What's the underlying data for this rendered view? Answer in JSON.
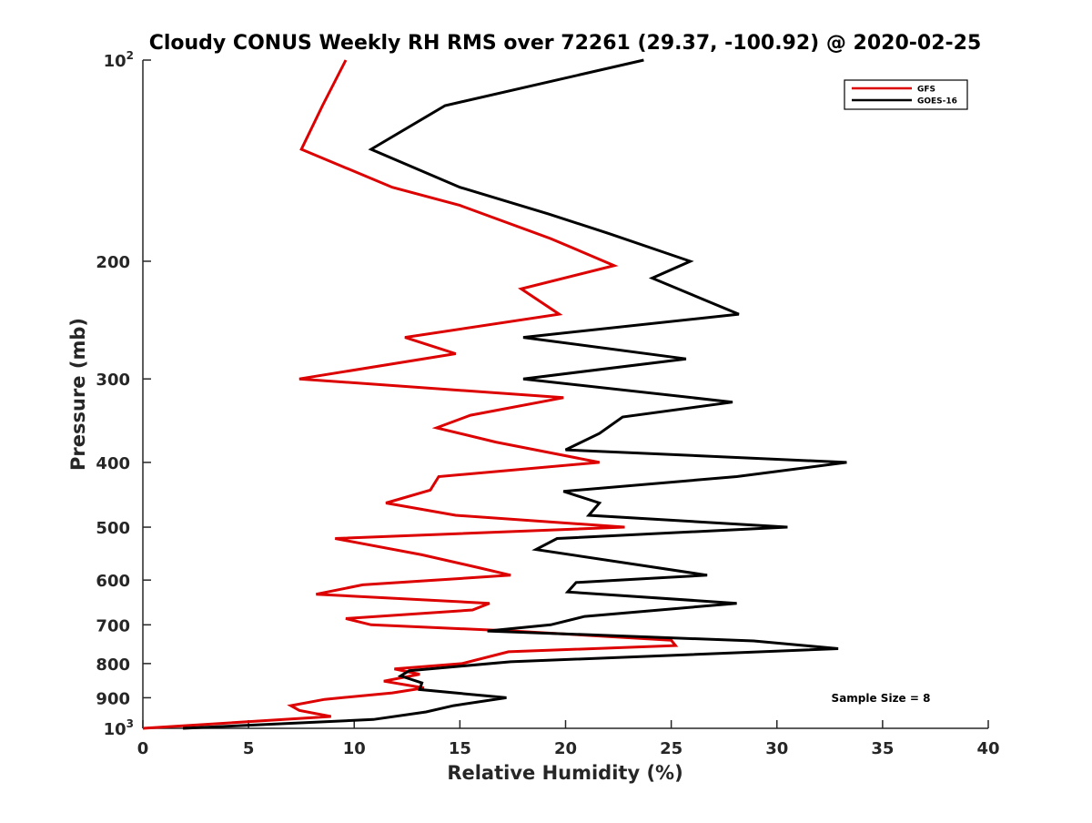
{
  "chart_data": {
    "type": "line",
    "title": "Cloudy CONUS Weekly RH RMS over 72261 (29.37, -100.92) @ 2020-02-25",
    "xlabel": "Relative Humidity (%)",
    "ylabel": "Pressure (mb)",
    "xlim": [
      0,
      40
    ],
    "ylim": [
      100,
      1000
    ],
    "y_scale": "log",
    "y_reversed": true,
    "grid": false,
    "legend_position": "top-right",
    "x_ticks": [
      "0",
      "5",
      "10",
      "15",
      "20",
      "25",
      "30",
      "35",
      "40"
    ],
    "y_ticks": [
      {
        "value": 100,
        "label": "10",
        "sup": "2"
      },
      {
        "value": 200,
        "label": "200",
        "sup": ""
      },
      {
        "value": 300,
        "label": "300",
        "sup": ""
      },
      {
        "value": 400,
        "label": "400",
        "sup": ""
      },
      {
        "value": 500,
        "label": "500",
        "sup": ""
      },
      {
        "value": 600,
        "label": "600",
        "sup": ""
      },
      {
        "value": 700,
        "label": "700",
        "sup": ""
      },
      {
        "value": 800,
        "label": "800",
        "sup": ""
      },
      {
        "value": 900,
        "label": "900",
        "sup": ""
      },
      {
        "value": 1000,
        "label": "10",
        "sup": "3"
      }
    ],
    "annotation": "Sample Size = 8",
    "series": [
      {
        "name": "GFS",
        "color": "#dd0000",
        "points": [
          [
            9.6,
            100
          ],
          [
            8.5,
            117
          ],
          [
            7.5,
            136
          ],
          [
            11.8,
            155
          ],
          [
            15.0,
            165
          ],
          [
            19.3,
            185
          ],
          [
            22.3,
            203
          ],
          [
            17.9,
            220
          ],
          [
            19.7,
            240
          ],
          [
            12.4,
            260
          ],
          [
            14.8,
            275
          ],
          [
            7.4,
            300
          ],
          [
            19.9,
            320
          ],
          [
            15.5,
            340
          ],
          [
            13.9,
            355
          ],
          [
            16.7,
            373
          ],
          [
            21.6,
            400
          ],
          [
            14.0,
            420
          ],
          [
            13.6,
            440
          ],
          [
            11.5,
            460
          ],
          [
            14.8,
            480
          ],
          [
            22.8,
            500
          ],
          [
            9.1,
            520
          ],
          [
            13.2,
            550
          ],
          [
            15.9,
            575
          ],
          [
            17.4,
            590
          ],
          [
            10.4,
            610
          ],
          [
            8.2,
            630
          ],
          [
            16.4,
            650
          ],
          [
            15.6,
            665
          ],
          [
            9.6,
            685
          ],
          [
            10.8,
            700
          ],
          [
            17.5,
            715
          ],
          [
            25.0,
            738
          ],
          [
            25.2,
            752
          ],
          [
            17.3,
            768
          ],
          [
            15.1,
            800
          ],
          [
            11.9,
            815
          ],
          [
            13.1,
            830
          ],
          [
            11.4,
            850
          ],
          [
            13.3,
            870
          ],
          [
            11.8,
            885
          ],
          [
            8.6,
            905
          ],
          [
            7.0,
            925
          ],
          [
            7.4,
            940
          ],
          [
            8.9,
            960
          ],
          [
            0.0,
            1000
          ]
        ]
      },
      {
        "name": "GOES-16",
        "color": "#000000",
        "points": [
          [
            23.7,
            100
          ],
          [
            14.3,
            117
          ],
          [
            10.8,
            136
          ],
          [
            15.0,
            155
          ],
          [
            19.2,
            170
          ],
          [
            22.1,
            182
          ],
          [
            25.9,
            200
          ],
          [
            24.1,
            212
          ],
          [
            28.2,
            240
          ],
          [
            18.0,
            260
          ],
          [
            25.7,
            280
          ],
          [
            18.0,
            300
          ],
          [
            27.9,
            325
          ],
          [
            22.7,
            342
          ],
          [
            21.6,
            362
          ],
          [
            20.0,
            383
          ],
          [
            33.3,
            400
          ],
          [
            28.1,
            420
          ],
          [
            19.9,
            442
          ],
          [
            21.6,
            460
          ],
          [
            21.1,
            480
          ],
          [
            30.5,
            500
          ],
          [
            19.6,
            520
          ],
          [
            18.6,
            540
          ],
          [
            26.7,
            590
          ],
          [
            20.5,
            605
          ],
          [
            20.1,
            625
          ],
          [
            28.1,
            650
          ],
          [
            20.9,
            680
          ],
          [
            19.3,
            700
          ],
          [
            16.3,
            715
          ],
          [
            28.9,
            740
          ],
          [
            32.9,
            760
          ],
          [
            17.4,
            795
          ],
          [
            12.6,
            820
          ],
          [
            12.2,
            835
          ],
          [
            13.2,
            855
          ],
          [
            13.1,
            875
          ],
          [
            17.2,
            900
          ],
          [
            14.7,
            925
          ],
          [
            13.4,
            945
          ],
          [
            10.9,
            970
          ],
          [
            1.9,
            1000
          ]
        ]
      }
    ]
  }
}
